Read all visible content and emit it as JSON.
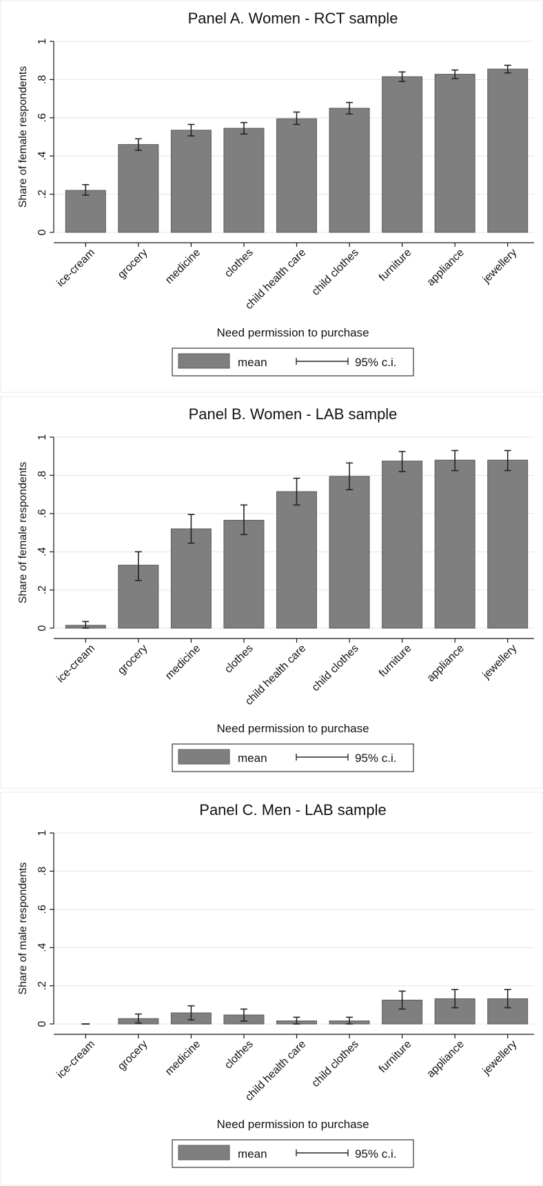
{
  "chart_data": [
    {
      "type": "bar",
      "title": "Panel A. Women - RCT sample",
      "xlabel": "Need permission to purchase",
      "ylabel": "Share of female respondents",
      "ylim": [
        0,
        1
      ],
      "yticks": [
        "0",
        ".2",
        ".4",
        ".6",
        ".8",
        "1"
      ],
      "grid": true,
      "categories": [
        "ice-cream",
        "grocery",
        "medicine",
        "clothes",
        "child health care",
        "child clothes",
        "furniture",
        "appliance",
        "jewellery"
      ],
      "values": [
        0.22,
        0.46,
        0.535,
        0.545,
        0.595,
        0.65,
        0.815,
        0.828,
        0.855
      ],
      "ci_low": [
        0.195,
        0.43,
        0.505,
        0.515,
        0.565,
        0.62,
        0.79,
        0.805,
        0.835
      ],
      "ci_high": [
        0.25,
        0.49,
        0.565,
        0.575,
        0.63,
        0.68,
        0.84,
        0.85,
        0.875
      ],
      "legend": {
        "items": [
          "mean",
          "95% c.i."
        ],
        "position": "bottom"
      }
    },
    {
      "type": "bar",
      "title": "Panel B. Women - LAB sample",
      "xlabel": "Need permission to purchase",
      "ylabel": "Share of female respondents",
      "ylim": [
        0,
        1
      ],
      "yticks": [
        "0",
        ".2",
        ".4",
        ".6",
        ".8",
        "1"
      ],
      "grid": true,
      "categories": [
        "ice-cream",
        "grocery",
        "medicine",
        "clothes",
        "child health care",
        "child clothes",
        "furniture",
        "appliance",
        "jewellery"
      ],
      "values": [
        0.015,
        0.33,
        0.52,
        0.565,
        0.715,
        0.795,
        0.875,
        0.88,
        0.88
      ],
      "ci_low": [
        0.0,
        0.25,
        0.445,
        0.49,
        0.645,
        0.725,
        0.82,
        0.825,
        0.825
      ],
      "ci_high": [
        0.035,
        0.4,
        0.595,
        0.645,
        0.785,
        0.865,
        0.925,
        0.93,
        0.93
      ],
      "legend": {
        "items": [
          "mean",
          "95% c.i."
        ],
        "position": "bottom"
      }
    },
    {
      "type": "bar",
      "title": "Panel C. Men - LAB sample",
      "xlabel": "Need permission to purchase",
      "ylabel": "Share of male respondents",
      "ylim": [
        0,
        1
      ],
      "yticks": [
        "0",
        ".2",
        ".4",
        ".6",
        ".8",
        "1"
      ],
      "grid": true,
      "categories": [
        "ice-cream",
        "grocery",
        "medicine",
        "clothes",
        "child health care",
        "child clothes",
        "furniture",
        "appliance",
        "jewellery"
      ],
      "values": [
        0.0,
        0.028,
        0.058,
        0.047,
        0.016,
        0.016,
        0.125,
        0.132,
        0.132
      ],
      "ci_low": [
        0.0,
        0.005,
        0.022,
        0.015,
        0.0,
        0.0,
        0.078,
        0.085,
        0.085
      ],
      "ci_high": [
        0.0,
        0.052,
        0.095,
        0.078,
        0.035,
        0.035,
        0.172,
        0.18,
        0.18
      ],
      "legend": {
        "items": [
          "mean",
          "95% c.i."
        ],
        "position": "bottom"
      }
    }
  ],
  "colors": {
    "bar_fill": "#7f7f7f",
    "bar_stroke": "#5a5a5a",
    "grid": "#e4e4e4",
    "text": "#111111",
    "panel_bg": "#ffffff",
    "panel_border": "#e8e8e8"
  }
}
